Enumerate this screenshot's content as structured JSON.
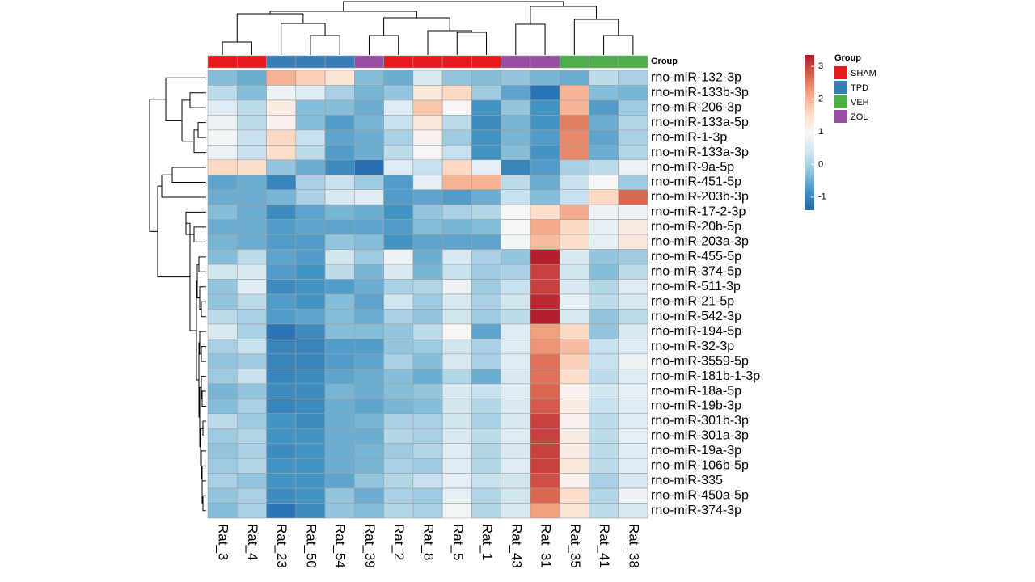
{
  "chart_data": {
    "type": "heatmap",
    "columns": [
      "Rat_3",
      "Rat_4",
      "Rat_23",
      "Rat_50",
      "Rat_54",
      "Rat_39",
      "Rat_2",
      "Rat_8",
      "Rat_5",
      "Rat_1",
      "Rat_43",
      "Rat_31",
      "Rat_35",
      "Rat_41",
      "Rat_38"
    ],
    "column_groups": [
      "SHAM",
      "SHAM",
      "TPD",
      "TPD",
      "TPD",
      "ZOL",
      "SHAM",
      "SHAM",
      "SHAM",
      "SHAM",
      "ZOL",
      "ZOL",
      "VEH",
      "VEH",
      "VEH"
    ],
    "group_title": "Group",
    "groups": [
      {
        "name": "SHAM",
        "color": "#e41a1c"
      },
      {
        "name": "TPD",
        "color": "#377eb8"
      },
      {
        "name": "VEH",
        "color": "#4daf4a"
      },
      {
        "name": "ZOL",
        "color": "#984ea3"
      }
    ],
    "rows": [
      "rno-miR-132-3p",
      "rno-miR-133b-3p",
      "rno-miR-206-3p",
      "rno-miR-133a-5p",
      "rno-miR-1-3p",
      "rno-miR-133a-3p",
      "rno-miR-9a-5p",
      "rno-miR-451-5p",
      "rno-miR-203b-3p",
      "rno-miR-17-2-3p",
      "rno-miR-20b-5p",
      "rno-miR-203a-3p",
      "rno-miR-455-5p",
      "rno-miR-374-5p",
      "rno-miR-511-3p",
      "rno-miR-21-5p",
      "rno-miR-542-3p",
      "rno-miR-194-5p",
      "rno-miR-32-3p",
      "rno-miR-3559-5p",
      "rno-miR-181b-1-3p",
      "rno-miR-18a-5p",
      "rno-miR-19b-3p",
      "rno-miR-301b-3p",
      "rno-miR-301a-3p",
      "rno-miR-19a-3p",
      "rno-miR-106b-5p",
      "rno-miR-335",
      "rno-miR-450a-5p",
      "rno-miR-374-3p"
    ],
    "values": [
      [
        -0.3,
        -0.5,
        2.0,
        1.7,
        1.4,
        -0.3,
        -0.5,
        0.5,
        -0.2,
        -0.3,
        -0.2,
        -0.4,
        -0.5,
        0.2,
        0.0
      ],
      [
        0.2,
        -0.3,
        0.8,
        0.6,
        0.0,
        -0.4,
        -0.2,
        1.3,
        1.6,
        -0.1,
        -0.6,
        -1.2,
        2.0,
        -0.3,
        -0.4
      ],
      [
        0.6,
        0.2,
        1.2,
        -0.3,
        -0.3,
        -0.5,
        0.6,
        1.8,
        1.0,
        -0.8,
        -0.2,
        -0.8,
        2.0,
        -0.7,
        -0.1
      ],
      [
        0.8,
        0.2,
        1.1,
        -0.3,
        -0.7,
        -0.4,
        0.3,
        1.3,
        0.2,
        -0.9,
        -0.4,
        -0.8,
        2.5,
        -0.5,
        0.1
      ],
      [
        0.9,
        0.3,
        1.6,
        0.3,
        -0.6,
        -0.5,
        0.0,
        1.1,
        -0.1,
        -0.8,
        -0.4,
        -0.7,
        2.4,
        -0.6,
        0.0
      ],
      [
        0.8,
        0.3,
        1.5,
        0.2,
        -0.7,
        -0.5,
        0.2,
        1.0,
        0.3,
        -0.8,
        -0.3,
        -0.8,
        2.4,
        -0.5,
        0.1
      ],
      [
        1.6,
        1.5,
        -0.2,
        -0.5,
        -0.9,
        -1.3,
        0.6,
        0.3,
        1.6,
        0.7,
        -1.0,
        -0.7,
        0.0,
        0.2,
        0.8
      ],
      [
        -0.6,
        -0.5,
        -1.0,
        0.0,
        0.3,
        -0.1,
        -0.7,
        0.7,
        2.0,
        2.0,
        0.2,
        -0.5,
        0.3,
        1.0,
        -0.1
      ],
      [
        -0.5,
        -0.5,
        -0.4,
        0.0,
        0.5,
        0.6,
        -0.7,
        -0.6,
        -0.7,
        -0.5,
        0.3,
        -0.3,
        0.3,
        1.6,
        2.7
      ],
      [
        -0.3,
        -0.5,
        -0.9,
        -0.6,
        -0.4,
        -0.5,
        -0.8,
        -0.2,
        0.0,
        0.1,
        1.0,
        1.5,
        2.1,
        0.8,
        0.8
      ],
      [
        -0.5,
        -0.5,
        -0.7,
        -0.6,
        -0.6,
        -0.6,
        -0.7,
        -0.3,
        -0.4,
        -0.3,
        1.0,
        2.1,
        1.6,
        0.7,
        1.2
      ],
      [
        -0.4,
        -0.5,
        -0.7,
        -0.7,
        -0.2,
        -0.3,
        -0.8,
        -0.6,
        -0.6,
        -0.6,
        0.9,
        1.9,
        1.5,
        0.7,
        1.3
      ],
      [
        -0.3,
        0.2,
        -0.6,
        -0.7,
        0.4,
        -0.1,
        0.8,
        -0.5,
        0.5,
        0.0,
        -0.2,
        3.3,
        0.5,
        -0.2,
        -0.1
      ],
      [
        0.4,
        0.5,
        -0.7,
        -0.8,
        0.2,
        -0.4,
        0.5,
        -0.4,
        0.3,
        -0.1,
        0.0,
        3.0,
        0.4,
        -0.3,
        0.2
      ],
      [
        -0.2,
        0.6,
        -0.9,
        -0.8,
        -0.7,
        -0.5,
        0.0,
        0.1,
        0.8,
        -0.1,
        0.3,
        3.0,
        0.5,
        0.1,
        0.6
      ],
      [
        -0.2,
        0.2,
        -0.7,
        -0.8,
        -0.3,
        -0.6,
        0.4,
        -0.1,
        0.5,
        0.0,
        0.4,
        3.2,
        0.7,
        0.2,
        0.5
      ],
      [
        0.2,
        0.0,
        -0.7,
        -0.6,
        -0.3,
        -0.5,
        0.0,
        -0.2,
        0.4,
        -0.1,
        0.2,
        3.3,
        0.5,
        -0.2,
        0.2
      ],
      [
        0.5,
        0.0,
        -1.2,
        -0.9,
        -0.3,
        -0.3,
        -0.2,
        0.2,
        1.0,
        -0.6,
        0.6,
        2.2,
        1.6,
        -0.2,
        0.5
      ],
      [
        0.0,
        0.3,
        -1.0,
        -1.0,
        -0.7,
        -0.7,
        -0.2,
        -0.1,
        0.4,
        0.0,
        0.6,
        2.3,
        1.9,
        0.3,
        0.6
      ],
      [
        -0.2,
        -0.1,
        -1.0,
        -1.0,
        -0.7,
        -0.6,
        0.0,
        -0.3,
        0.5,
        0.0,
        0.6,
        2.6,
        1.7,
        0.3,
        0.8
      ],
      [
        -0.1,
        0.3,
        -1.0,
        -0.9,
        -0.6,
        -0.5,
        -0.3,
        -0.5,
        0.1,
        -0.5,
        0.5,
        2.6,
        1.5,
        0.2,
        0.6
      ],
      [
        -0.4,
        -0.2,
        -0.9,
        -0.9,
        -0.4,
        -0.5,
        -0.3,
        -0.2,
        0.5,
        0.3,
        0.6,
        2.7,
        1.1,
        0.4,
        0.7
      ],
      [
        -0.3,
        0.0,
        -1.0,
        -0.9,
        -0.5,
        -0.6,
        -0.4,
        -0.3,
        0.4,
        0.1,
        0.5,
        2.8,
        1.2,
        0.3,
        0.6
      ],
      [
        0.2,
        -0.1,
        -0.8,
        -0.9,
        -0.5,
        -0.4,
        0.0,
        0.0,
        0.4,
        0.0,
        0.5,
        3.0,
        1.1,
        0.2,
        0.6
      ],
      [
        -0.1,
        0.1,
        -0.8,
        -0.8,
        -0.5,
        -0.5,
        0.1,
        0.0,
        0.5,
        0.2,
        0.6,
        3.0,
        1.2,
        0.2,
        0.7
      ],
      [
        -0.2,
        0.0,
        -0.9,
        -0.8,
        -0.5,
        -0.4,
        -0.1,
        0.1,
        0.6,
        0.1,
        0.5,
        3.0,
        1.2,
        0.2,
        0.6
      ],
      [
        -0.1,
        0.1,
        -0.8,
        -0.8,
        -0.5,
        -0.4,
        0.0,
        -0.1,
        0.6,
        0.1,
        0.6,
        3.0,
        1.3,
        0.2,
        0.6
      ],
      [
        0.0,
        -0.2,
        -0.8,
        -0.8,
        -0.6,
        -0.2,
        0.1,
        0.3,
        0.7,
        0.3,
        0.4,
        2.9,
        1.1,
        0.0,
        0.5
      ],
      [
        -0.2,
        0.0,
        -0.9,
        -0.8,
        -0.2,
        -0.5,
        0.0,
        -0.1,
        0.7,
        0.1,
        0.4,
        2.7,
        1.5,
        0.1,
        0.8
      ],
      [
        -0.3,
        0.0,
        -1.2,
        -0.9,
        -0.2,
        -0.3,
        0.1,
        0.0,
        0.9,
        0.1,
        0.5,
        2.2,
        1.4,
        0.2,
        0.5
      ]
    ],
    "colors": [
      "#2166ac",
      "#4393c3",
      "#92c5de",
      "#d1e5f0",
      "#f7f7f7",
      "#fddbc7",
      "#f4a582",
      "#d6604d",
      "#b2182b"
    ],
    "zlim": [
      -1.4,
      3.35
    ],
    "zticks": [
      -1,
      0,
      1,
      2,
      3
    ]
  }
}
